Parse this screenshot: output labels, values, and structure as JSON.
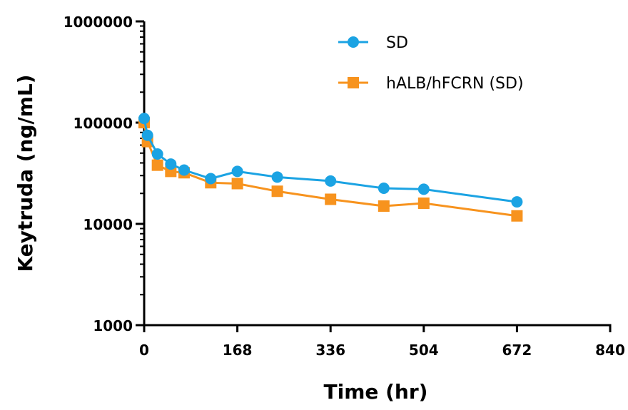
{
  "chart_data": {
    "type": "line",
    "title": "",
    "xlabel": "Time (hr)",
    "ylabel": "Keytruda (ng/mL)",
    "xlim": [
      0,
      840
    ],
    "ylim": [
      1000,
      1000000
    ],
    "yscale": "log",
    "x_ticks": [
      0,
      168,
      336,
      504,
      672,
      840
    ],
    "x_tick_labels": [
      "0",
      "168",
      "336",
      "504",
      "672",
      "840"
    ],
    "y_ticks": [
      1000,
      10000,
      100000,
      1000000
    ],
    "y_tick_labels": [
      "1000",
      "10000",
      "100000",
      "1000000"
    ],
    "grid": false,
    "legend_position": "top-right",
    "series": [
      {
        "name": "SD",
        "color": "#1ba3e3",
        "marker": "circle",
        "x": [
          0,
          6,
          24,
          48,
          72,
          120,
          168,
          240,
          336,
          432,
          504,
          672
        ],
        "y": [
          110000,
          75000,
          49000,
          39000,
          34000,
          28000,
          33000,
          29000,
          26500,
          22500,
          22000,
          16500
        ]
      },
      {
        "name": "hALB/hFCRN (SD)",
        "color": "#f7931e",
        "marker": "square",
        "x": [
          0,
          6,
          24,
          48,
          72,
          120,
          168,
          240,
          336,
          432,
          504,
          672
        ],
        "y": [
          100000,
          65000,
          38000,
          33000,
          32000,
          25500,
          25000,
          21000,
          17500,
          15000,
          16000,
          12000
        ]
      }
    ]
  }
}
